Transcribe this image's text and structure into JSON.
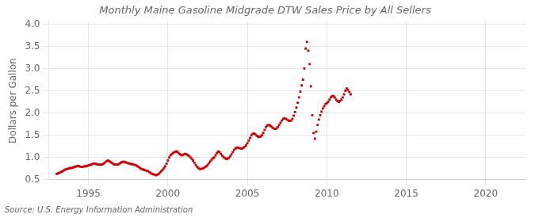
{
  "chart_data": {
    "type": "scatter",
    "title": "Monthly Maine Gasoline Midgrade DTW Sales Price by All Sellers",
    "ylabel": "Dollars per Gallon",
    "annotation": "Source: U.S. Energy Information Administration",
    "color": "#cc0000",
    "marker": "square",
    "grid": true,
    "xlim": [
      1992.5,
      2022.5
    ],
    "ylim": [
      0.5,
      4.05
    ],
    "xticks": [
      1995,
      2000,
      2005,
      2010,
      2015,
      2020
    ],
    "yticks": [
      0.5,
      {
        "value": 1.0,
        "label": "1.0"
      },
      1.5,
      {
        "value": 2.0,
        "label": "2.0"
      },
      2.5,
      {
        "value": 3.0,
        "label": "3.0"
      },
      3.5,
      {
        "value": 4.0,
        "label": "4.0"
      }
    ],
    "x": [
      1993.0,
      1993.083,
      1993.167,
      1993.25,
      1993.333,
      1993.417,
      1993.5,
      1993.583,
      1993.667,
      1993.75,
      1993.833,
      1993.917,
      1994.0,
      1994.083,
      1994.167,
      1994.25,
      1994.333,
      1994.417,
      1994.5,
      1994.583,
      1994.667,
      1994.75,
      1994.833,
      1994.917,
      1995.0,
      1995.083,
      1995.167,
      1995.25,
      1995.333,
      1995.417,
      1995.5,
      1995.583,
      1995.667,
      1995.75,
      1995.833,
      1995.917,
      1996.0,
      1996.083,
      1996.167,
      1996.25,
      1996.333,
      1996.417,
      1996.5,
      1996.583,
      1996.667,
      1996.75,
      1996.833,
      1996.917,
      1997.0,
      1997.083,
      1997.167,
      1997.25,
      1997.333,
      1997.417,
      1997.5,
      1997.583,
      1997.667,
      1997.75,
      1997.833,
      1997.917,
      1998.0,
      1998.083,
      1998.167,
      1998.25,
      1998.333,
      1998.417,
      1998.5,
      1998.583,
      1998.667,
      1998.75,
      1998.833,
      1998.917,
      1999.0,
      1999.083,
      1999.167,
      1999.25,
      1999.333,
      1999.417,
      1999.5,
      1999.583,
      1999.667,
      1999.75,
      1999.833,
      1999.917,
      2000.0,
      2000.083,
      2000.167,
      2000.25,
      2000.333,
      2000.417,
      2000.5,
      2000.583,
      2000.667,
      2000.75,
      2000.833,
      2000.917,
      2001.0,
      2001.083,
      2001.167,
      2001.25,
      2001.333,
      2001.417,
      2001.5,
      2001.583,
      2001.667,
      2001.75,
      2001.833,
      2001.917,
      2002.0,
      2002.083,
      2002.167,
      2002.25,
      2002.333,
      2002.417,
      2002.5,
      2002.583,
      2002.667,
      2002.75,
      2002.833,
      2002.917,
      2003.0,
      2003.083,
      2003.167,
      2003.25,
      2003.333,
      2003.417,
      2003.5,
      2003.583,
      2003.667,
      2003.75,
      2003.833,
      2003.917,
      2004.0,
      2004.083,
      2004.167,
      2004.25,
      2004.333,
      2004.417,
      2004.5,
      2004.583,
      2004.667,
      2004.75,
      2004.833,
      2004.917,
      2005.0,
      2005.083,
      2005.167,
      2005.25,
      2005.333,
      2005.417,
      2005.5,
      2005.583,
      2005.667,
      2005.75,
      2005.833,
      2005.917,
      2006.0,
      2006.083,
      2006.167,
      2006.25,
      2006.333,
      2006.417,
      2006.5,
      2006.583,
      2006.667,
      2006.75,
      2006.833,
      2006.917,
      2007.0,
      2007.083,
      2007.167,
      2007.25,
      2007.333,
      2007.417,
      2007.5,
      2007.583,
      2007.667,
      2007.75,
      2007.833,
      2007.917,
      2008.0,
      2008.083,
      2008.167,
      2008.25,
      2008.333,
      2008.417,
      2008.5,
      2008.583,
      2008.667,
      2008.75,
      2008.833,
      2008.917,
      2009.0,
      2009.083,
      2009.167,
      2009.25,
      2009.333,
      2009.417,
      2009.5,
      2009.583,
      2009.667,
      2009.75,
      2009.833,
      2009.917,
      2010.0,
      2010.083,
      2010.167,
      2010.25,
      2010.333,
      2010.417,
      2010.5,
      2010.583,
      2010.667,
      2010.75,
      2010.833,
      2010.917,
      2011.0,
      2011.083,
      2011.167,
      2011.25,
      2011.333,
      2011.417,
      2011.5
    ],
    "values": [
      0.63,
      0.64,
      0.65,
      0.67,
      0.68,
      0.7,
      0.72,
      0.73,
      0.74,
      0.75,
      0.76,
      0.76,
      0.77,
      0.78,
      0.79,
      0.8,
      0.81,
      0.8,
      0.79,
      0.79,
      0.79,
      0.8,
      0.8,
      0.81,
      0.82,
      0.83,
      0.84,
      0.85,
      0.86,
      0.86,
      0.85,
      0.84,
      0.84,
      0.84,
      0.84,
      0.85,
      0.87,
      0.9,
      0.92,
      0.93,
      0.91,
      0.89,
      0.87,
      0.85,
      0.84,
      0.84,
      0.84,
      0.85,
      0.87,
      0.89,
      0.9,
      0.9,
      0.89,
      0.88,
      0.87,
      0.86,
      0.85,
      0.85,
      0.84,
      0.83,
      0.82,
      0.8,
      0.78,
      0.76,
      0.74,
      0.73,
      0.72,
      0.71,
      0.7,
      0.69,
      0.67,
      0.65,
      0.63,
      0.62,
      0.61,
      0.6,
      0.61,
      0.63,
      0.66,
      0.69,
      0.72,
      0.76,
      0.8,
      0.86,
      0.93,
      1.0,
      1.05,
      1.08,
      1.1,
      1.12,
      1.13,
      1.13,
      1.1,
      1.07,
      1.05,
      1.05,
      1.07,
      1.08,
      1.07,
      1.05,
      1.03,
      1.0,
      0.97,
      0.93,
      0.88,
      0.83,
      0.79,
      0.76,
      0.74,
      0.74,
      0.75,
      0.76,
      0.78,
      0.8,
      0.83,
      0.87,
      0.91,
      0.95,
      0.98,
      1.0,
      1.05,
      1.1,
      1.13,
      1.12,
      1.08,
      1.04,
      1.01,
      0.98,
      0.97,
      0.97,
      0.99,
      1.02,
      1.07,
      1.12,
      1.17,
      1.2,
      1.22,
      1.22,
      1.21,
      1.2,
      1.2,
      1.22,
      1.24,
      1.27,
      1.32,
      1.38,
      1.44,
      1.5,
      1.53,
      1.54,
      1.52,
      1.49,
      1.47,
      1.46,
      1.47,
      1.5,
      1.55,
      1.62,
      1.68,
      1.72,
      1.73,
      1.72,
      1.7,
      1.67,
      1.65,
      1.64,
      1.65,
      1.68,
      1.73,
      1.78,
      1.83,
      1.87,
      1.88,
      1.87,
      1.85,
      1.83,
      1.82,
      1.83,
      1.87,
      1.94,
      2.02,
      2.12,
      2.23,
      2.35,
      2.48,
      2.62,
      2.75,
      3.0,
      3.45,
      3.6,
      3.4,
      3.1,
      2.6,
      1.95,
      1.55,
      1.42,
      1.58,
      1.73,
      1.85,
      1.95,
      2.03,
      2.1,
      2.15,
      2.2,
      2.22,
      2.25,
      2.3,
      2.35,
      2.38,
      2.38,
      2.35,
      2.3,
      2.27,
      2.25,
      2.27,
      2.3,
      2.35,
      2.42,
      2.5,
      2.55,
      2.52,
      2.47,
      2.42
    ]
  }
}
